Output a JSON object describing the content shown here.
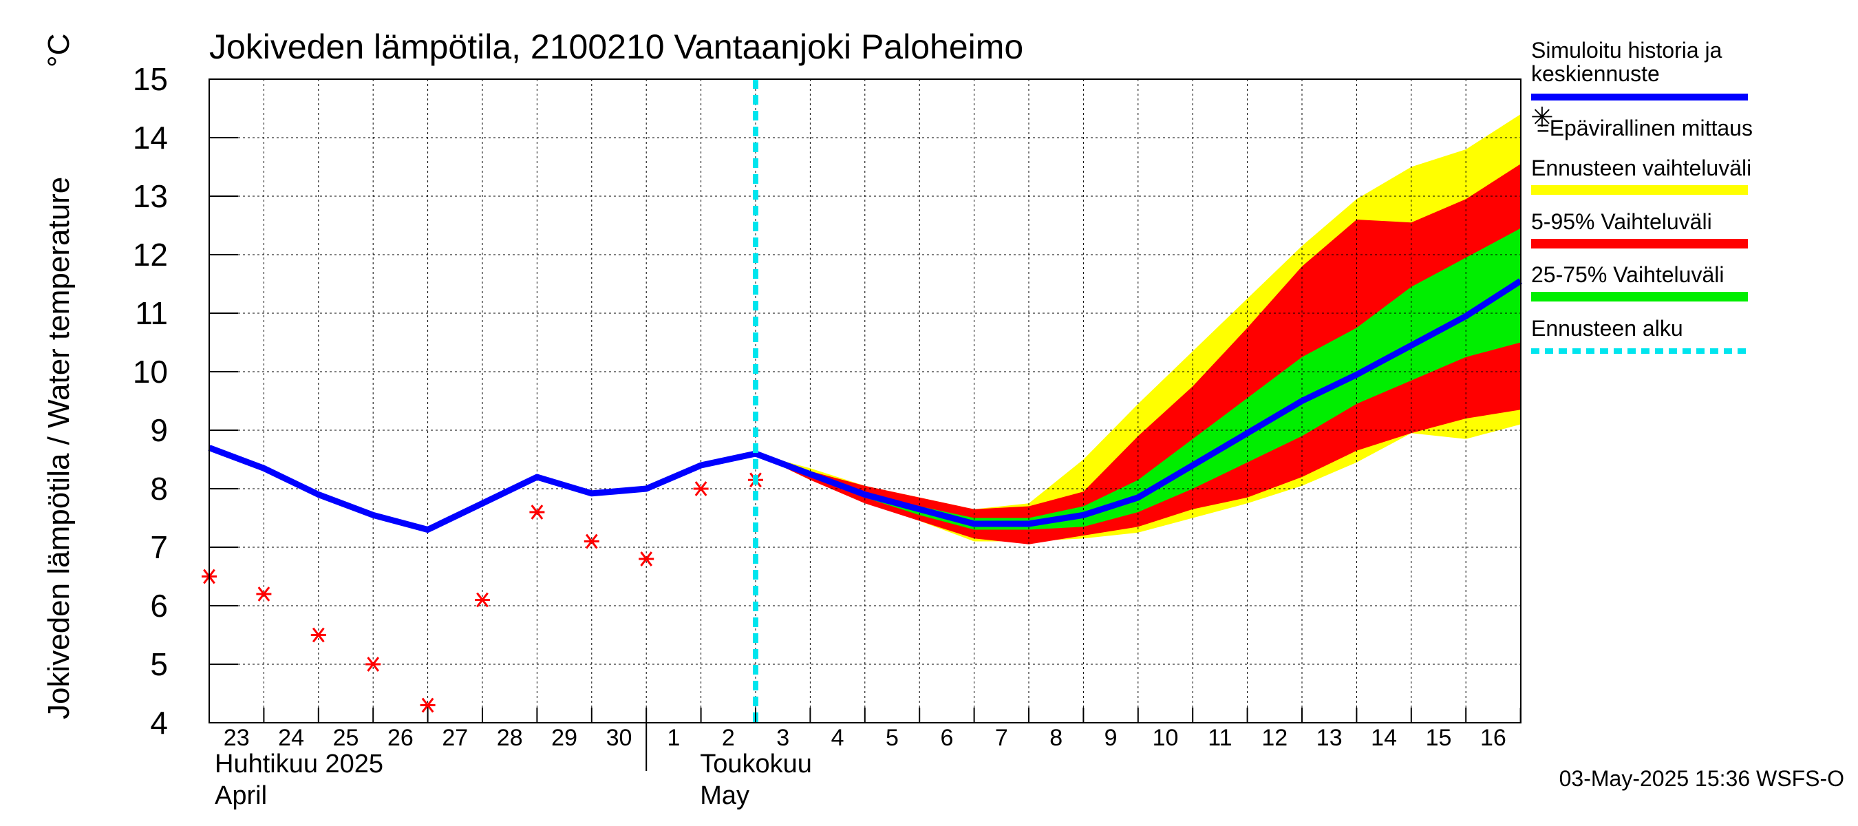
{
  "chart_data": {
    "type": "line",
    "title": "Jokiveden lämpötila, 2100210 Vantaanjoki Paloheimo",
    "ylabel": "Jokiveden lämpötila / Water temperature",
    "yunit": "°C",
    "ylim": [
      4,
      15
    ],
    "yticks": [
      "4",
      "5",
      "6",
      "7",
      "8",
      "9",
      "10",
      "11",
      "12",
      "13",
      "14",
      "15"
    ],
    "xlim": [
      "2025-04-23",
      "2025-05-16"
    ],
    "x_tick_labels": [
      "23",
      "24",
      "25",
      "26",
      "27",
      "28",
      "29",
      "30",
      "1",
      "2",
      "3",
      "4",
      "5",
      "6",
      "7",
      "8",
      "9",
      "10",
      "11",
      "12",
      "13",
      "14",
      "15",
      "16"
    ],
    "month_labels": [
      {
        "fi": "Huhtikuu  2025",
        "en": "April"
      },
      {
        "fi": "Toukokuu",
        "en": "May"
      }
    ],
    "grid": true,
    "legend_position": "right",
    "forecast_start": "2025-05-03",
    "timestamp": "03-May-2025 15:36 WSFS-O",
    "legend": [
      {
        "label": "Simuloitu historia ja keskiennuste",
        "color": "#0000ff",
        "style": "line"
      },
      {
        "label": "=Epävirallinen mittaus",
        "color": "#ff0000",
        "style": "asterisk"
      },
      {
        "label": "Ennusteen vaihteluväli",
        "color": "#ffff00",
        "style": "band"
      },
      {
        "label": "5-95% Vaihteluväli",
        "color": "#ff0000",
        "style": "band"
      },
      {
        "label": "25-75% Vaihteluväli",
        "color": "#00ee00",
        "style": "band"
      },
      {
        "label": "Ennusteen alku",
        "color": "#00e5ee",
        "style": "dashed"
      }
    ],
    "series": [
      {
        "name": "Simuloitu historia ja keskiennuste",
        "color": "#0000ff",
        "x": [
          "2025-04-23",
          "2025-04-24",
          "2025-04-25",
          "2025-04-26",
          "2025-04-27",
          "2025-04-28",
          "2025-04-29",
          "2025-04-30",
          "2025-05-01",
          "2025-05-02",
          "2025-05-03",
          "2025-05-04",
          "2025-05-05",
          "2025-05-06",
          "2025-05-07",
          "2025-05-08",
          "2025-05-09",
          "2025-05-10",
          "2025-05-11",
          "2025-05-12",
          "2025-05-13",
          "2025-05-14",
          "2025-05-15",
          "2025-05-16",
          "2025-05-17"
        ],
        "y": [
          8.7,
          8.35,
          7.9,
          7.55,
          7.3,
          7.75,
          8.2,
          7.92,
          8.0,
          8.4,
          8.6,
          8.25,
          7.9,
          7.65,
          7.4,
          7.4,
          7.55,
          7.85,
          8.4,
          8.95,
          9.5,
          9.95,
          10.45,
          10.95,
          11.55
        ]
      },
      {
        "name": "=Epävirallinen mittaus",
        "color": "#ff0000",
        "x": [
          "2025-04-23",
          "2025-04-24",
          "2025-04-25",
          "2025-04-26",
          "2025-04-27",
          "2025-04-28",
          "2025-04-29",
          "2025-04-30",
          "2025-05-01",
          "2025-05-02",
          "2025-05-03"
        ],
        "y": [
          6.5,
          6.2,
          5.5,
          5.0,
          4.3,
          6.1,
          7.6,
          7.1,
          6.8,
          8.0,
          8.15
        ]
      }
    ],
    "bands": [
      {
        "name": "Ennusteen vaihteluväli",
        "color": "#ffff00",
        "x": [
          "2025-05-03",
          "2025-05-04",
          "2025-05-05",
          "2025-05-06",
          "2025-05-07",
          "2025-05-08",
          "2025-05-09",
          "2025-05-10",
          "2025-05-11",
          "2025-05-12",
          "2025-05-13",
          "2025-05-14",
          "2025-05-15",
          "2025-05-16",
          "2025-05-17"
        ],
        "lower": [
          8.6,
          8.15,
          7.8,
          7.45,
          7.1,
          7.1,
          7.15,
          7.25,
          7.5,
          7.75,
          8.05,
          8.45,
          8.95,
          8.85,
          9.1
        ],
        "upper": [
          8.6,
          8.35,
          8.05,
          7.85,
          7.65,
          7.75,
          8.5,
          9.45,
          10.35,
          11.25,
          12.15,
          12.95,
          13.5,
          13.8,
          14.4
        ]
      },
      {
        "name": "5-95% Vaihteluväli",
        "color": "#ff0000",
        "x": [
          "2025-05-03",
          "2025-05-04",
          "2025-05-05",
          "2025-05-06",
          "2025-05-07",
          "2025-05-08",
          "2025-05-09",
          "2025-05-10",
          "2025-05-11",
          "2025-05-12",
          "2025-05-13",
          "2025-05-14",
          "2025-05-15",
          "2025-05-16",
          "2025-05-17"
        ],
        "lower": [
          8.6,
          8.15,
          7.75,
          7.45,
          7.15,
          7.05,
          7.2,
          7.35,
          7.65,
          7.85,
          8.2,
          8.65,
          8.95,
          9.2,
          9.35
        ],
        "upper": [
          8.6,
          8.3,
          8.05,
          7.85,
          7.65,
          7.7,
          7.95,
          8.9,
          9.75,
          10.75,
          11.8,
          12.6,
          12.55,
          12.95,
          13.55
        ]
      },
      {
        "name": "25-75% Vaihteluväli",
        "color": "#00ee00",
        "x": [
          "2025-05-03",
          "2025-05-04",
          "2025-05-05",
          "2025-05-06",
          "2025-05-07",
          "2025-05-08",
          "2025-05-09",
          "2025-05-10",
          "2025-05-11",
          "2025-05-12",
          "2025-05-13",
          "2025-05-14",
          "2025-05-15",
          "2025-05-16",
          "2025-05-17"
        ],
        "lower": [
          8.6,
          8.22,
          7.85,
          7.55,
          7.3,
          7.3,
          7.35,
          7.6,
          8.0,
          8.45,
          8.9,
          9.45,
          9.85,
          10.25,
          10.5
        ],
        "upper": [
          8.6,
          8.28,
          7.95,
          7.7,
          7.5,
          7.5,
          7.7,
          8.15,
          8.85,
          9.55,
          10.25,
          10.75,
          11.45,
          11.95,
          12.45
        ]
      }
    ]
  }
}
